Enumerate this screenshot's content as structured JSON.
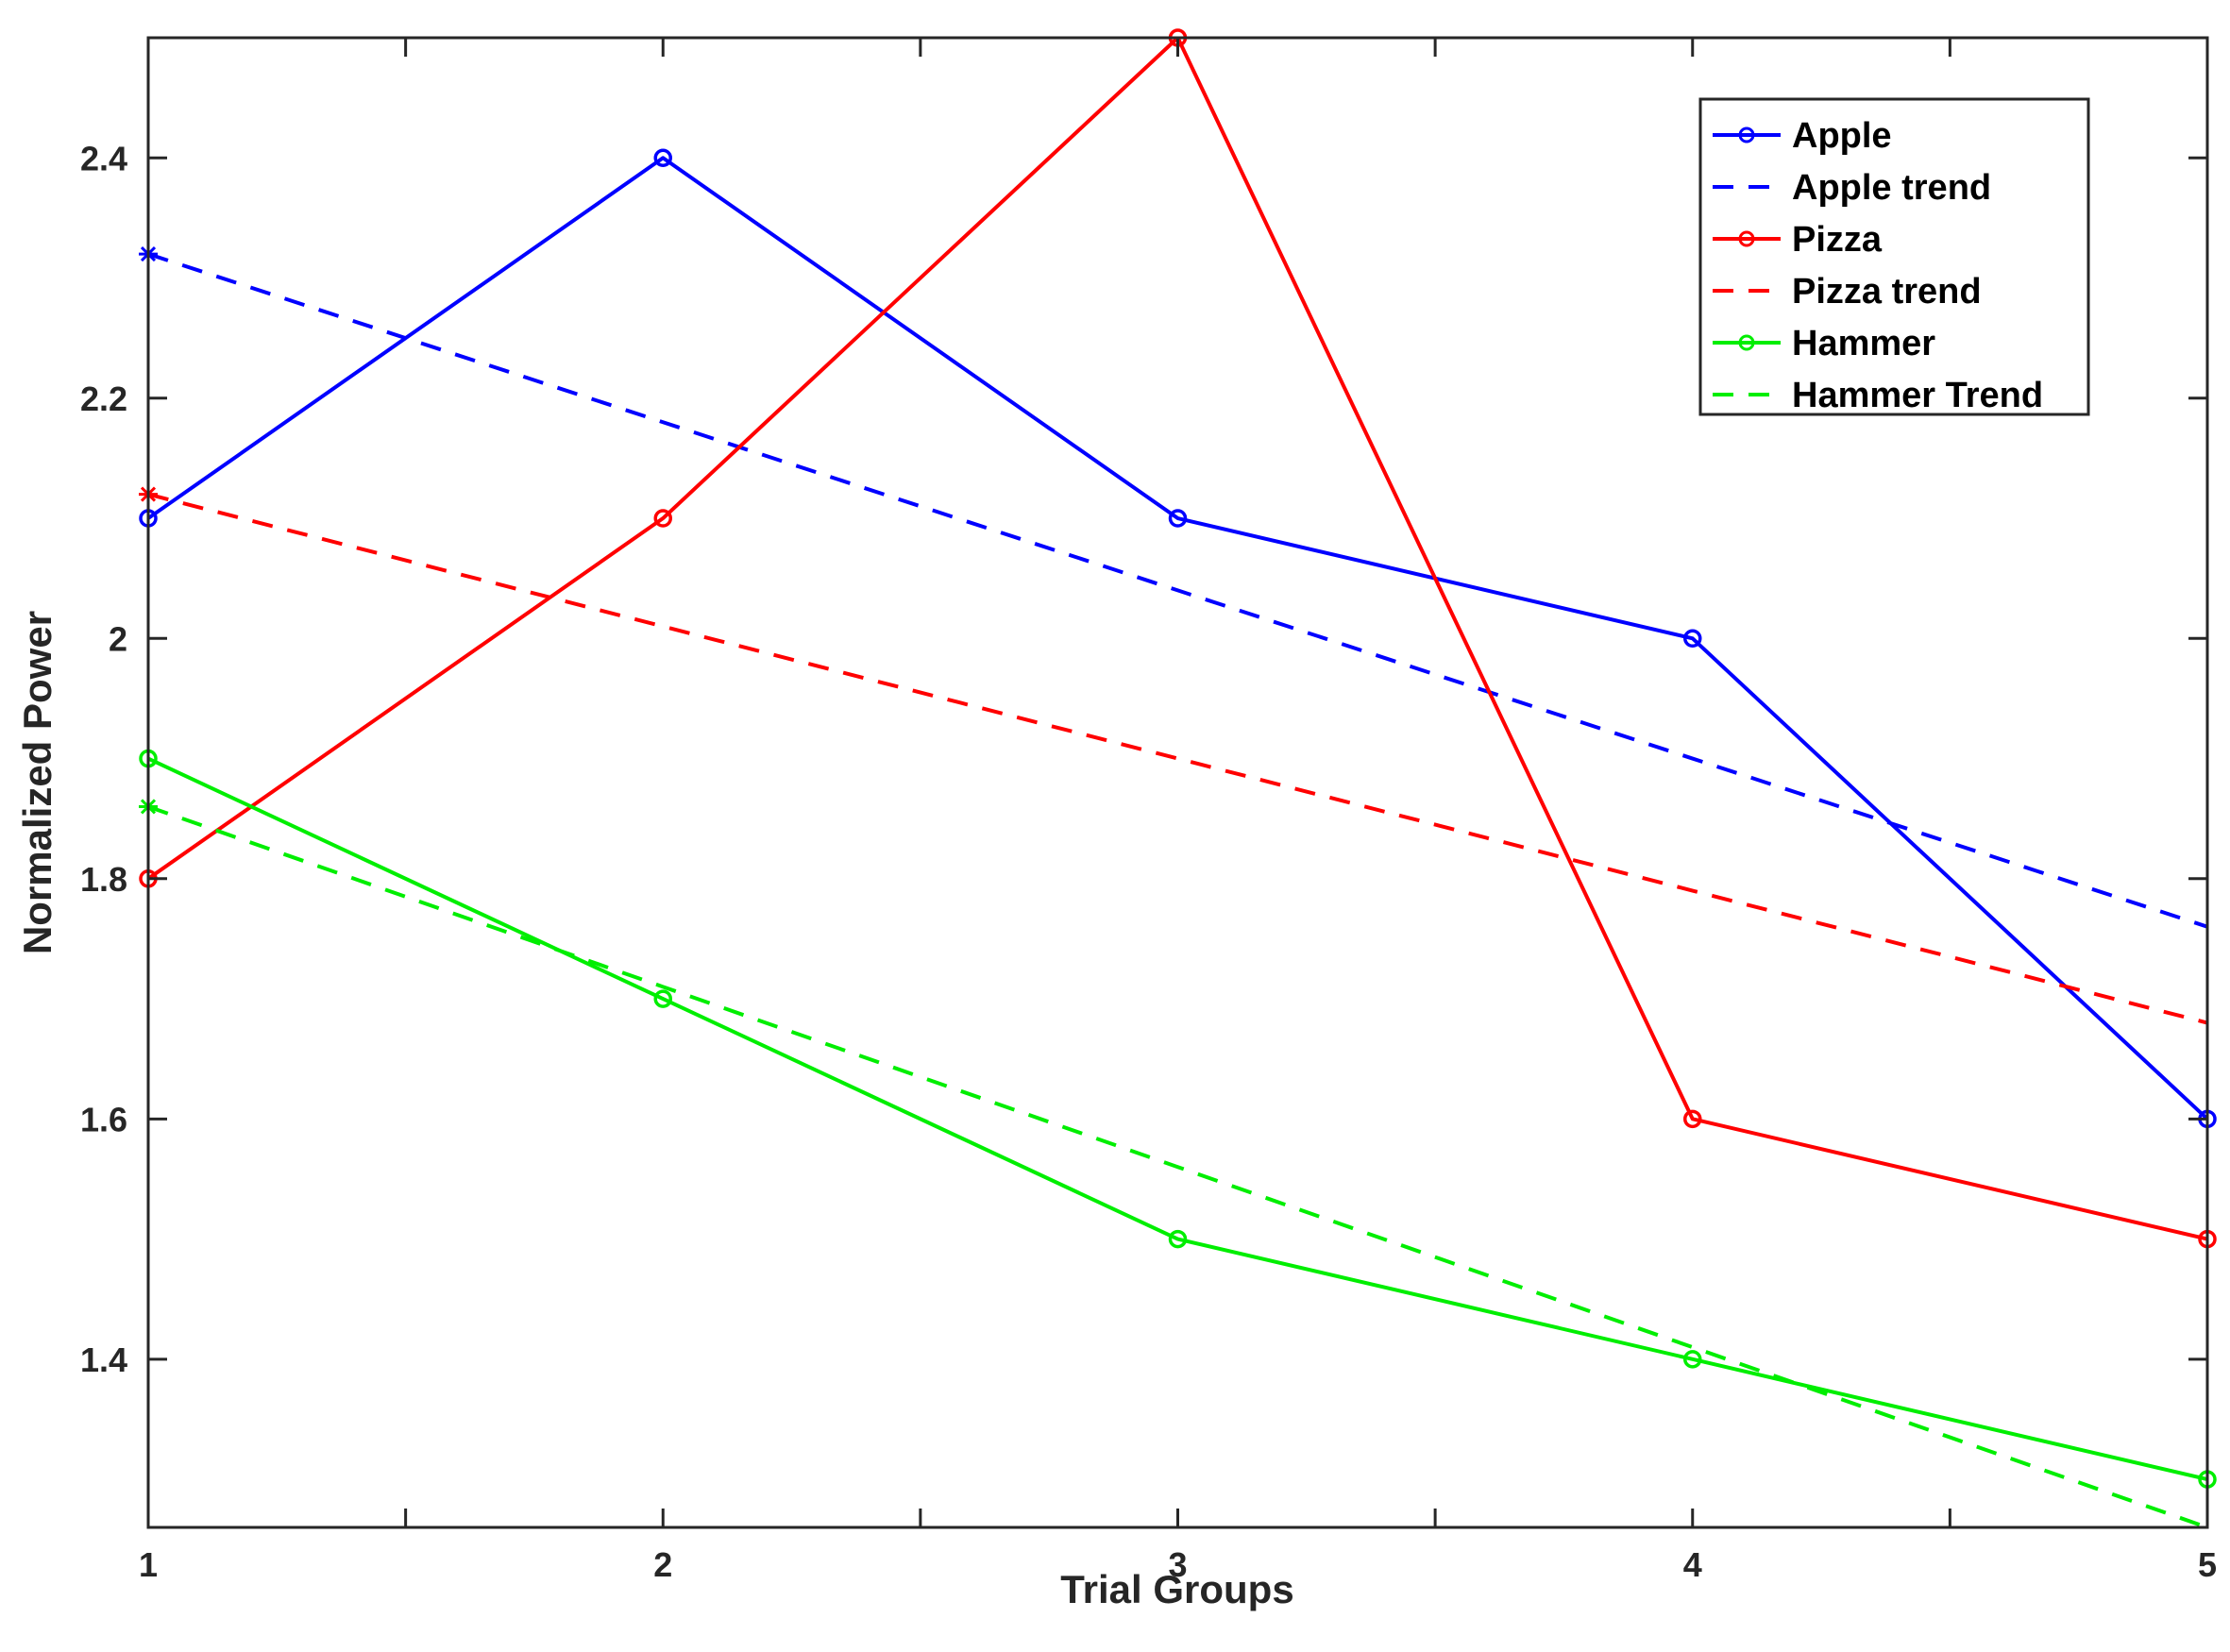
{
  "chart_data": {
    "type": "line",
    "title": "",
    "xlabel": "Trial Groups",
    "ylabel": "Normalized Power",
    "xlim": [
      1,
      5
    ],
    "ylim": [
      1.26,
      2.5
    ],
    "x_ticks": [
      1,
      1.5,
      2,
      2.5,
      3,
      3.5,
      4,
      4.5,
      5
    ],
    "x_tick_labels": [
      "1",
      "",
      "2",
      "",
      "3",
      "",
      "4",
      "",
      "5"
    ],
    "y_ticks": [
      1.4,
      1.6,
      1.8,
      2.0,
      2.2,
      2.4
    ],
    "y_tick_labels": [
      "1.4",
      "1.6",
      "1.8",
      "2",
      "2.2",
      "2.4"
    ],
    "grid": false,
    "legend_position": "top-right",
    "x": [
      1,
      2,
      3,
      4,
      5
    ],
    "series": [
      {
        "name": "Apple",
        "values": [
          2.1,
          2.4,
          2.1,
          2.0,
          1.6
        ],
        "color": "#0000ff",
        "style": "solid",
        "marker": "circle"
      },
      {
        "name": "Apple trend",
        "values": [
          2.32,
          2.18,
          2.04,
          1.9,
          1.76
        ],
        "color": "#0000ff",
        "style": "dashed",
        "marker": "start-star"
      },
      {
        "name": "Pizza",
        "values": [
          1.8,
          2.1,
          2.5,
          1.6,
          1.5
        ],
        "color": "#ff0000",
        "style": "solid",
        "marker": "circle"
      },
      {
        "name": "Pizza trend",
        "values": [
          2.12,
          2.01,
          1.9,
          1.79,
          1.68
        ],
        "color": "#ff0000",
        "style": "dashed",
        "marker": "start-star"
      },
      {
        "name": "Hammer",
        "values": [
          1.9,
          1.7,
          1.5,
          1.4,
          1.3
        ],
        "color": "#00ee00",
        "style": "solid",
        "marker": "circle"
      },
      {
        "name": "Hammer Trend",
        "values": [
          1.86,
          1.71,
          1.56,
          1.41,
          1.26
        ],
        "color": "#00ee00",
        "style": "dashed",
        "marker": "start-star"
      }
    ]
  }
}
